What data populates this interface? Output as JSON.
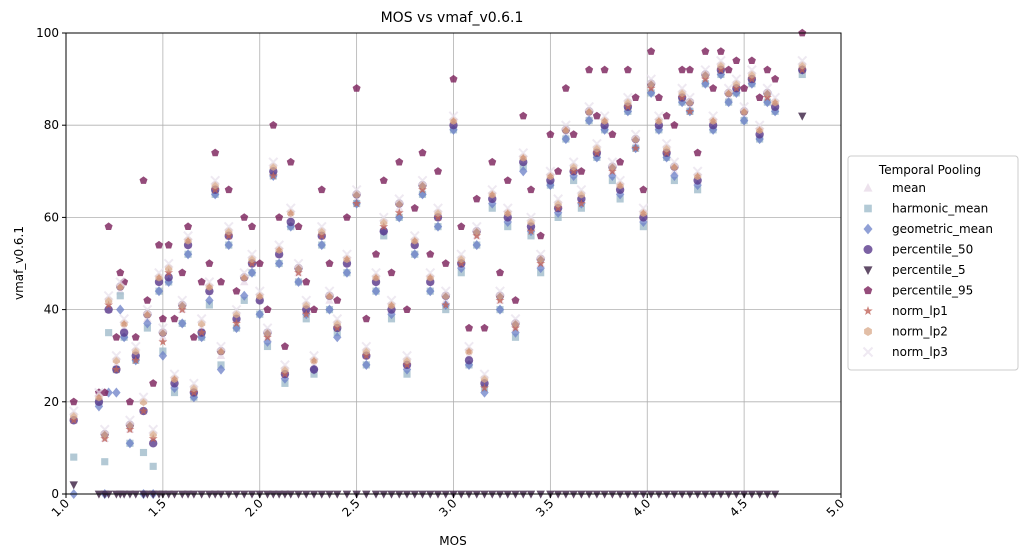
{
  "chart_data": {
    "type": "scatter",
    "title": "MOS vs vmaf_v0.6.1",
    "xlabel": "MOS",
    "ylabel": "vmaf_v0.6.1",
    "xlim": [
      1.0,
      5.0
    ],
    "ylim": [
      0,
      100
    ],
    "xticks": [
      "1.0",
      "1.5",
      "2.0",
      "2.5",
      "3.0",
      "3.5",
      "4.0",
      "4.5",
      "5.0"
    ],
    "yticks": [
      "0",
      "20",
      "40",
      "60",
      "80",
      "100"
    ],
    "grid": true,
    "legend_title": "Temporal Pooling",
    "legend_position": "right",
    "mos": [
      1.04,
      1.17,
      1.2,
      1.22,
      1.26,
      1.28,
      1.3,
      1.33,
      1.36,
      1.4,
      1.42,
      1.45,
      1.48,
      1.5,
      1.53,
      1.56,
      1.6,
      1.63,
      1.66,
      1.7,
      1.74,
      1.77,
      1.8,
      1.84,
      1.88,
      1.92,
      1.96,
      2.0,
      2.04,
      2.07,
      2.1,
      2.13,
      2.16,
      2.2,
      2.24,
      2.28,
      2.32,
      2.36,
      2.4,
      2.45,
      2.5,
      2.55,
      2.6,
      2.64,
      2.68,
      2.72,
      2.76,
      2.8,
      2.84,
      2.88,
      2.92,
      2.96,
      3.0,
      3.04,
      3.08,
      3.12,
      3.16,
      3.2,
      3.24,
      3.28,
      3.32,
      3.36,
      3.4,
      3.45,
      3.5,
      3.54,
      3.58,
      3.62,
      3.66,
      3.7,
      3.74,
      3.78,
      3.82,
      3.86,
      3.9,
      3.94,
      3.98,
      4.02,
      4.06,
      4.1,
      4.14,
      4.18,
      4.22,
      4.26,
      4.3,
      4.34,
      4.38,
      4.42,
      4.46,
      4.5,
      4.54,
      4.58,
      4.62,
      4.66,
      4.8
    ],
    "mean_values": [
      16,
      20,
      12,
      40,
      28,
      44,
      36,
      14,
      30,
      18,
      38,
      12,
      46,
      34,
      48,
      24,
      40,
      54,
      22,
      36,
      44,
      66,
      30,
      56,
      38,
      46,
      50,
      42,
      34,
      70,
      52,
      26,
      60,
      48,
      40,
      28,
      56,
      42,
      36,
      50,
      64,
      30,
      46,
      58,
      40,
      62,
      28,
      54,
      66,
      46,
      60,
      42,
      80,
      50,
      30,
      56,
      24,
      64,
      42,
      60,
      36,
      72,
      58,
      50,
      68,
      62,
      78,
      70,
      64,
      82,
      74,
      80,
      70,
      66,
      84,
      76,
      60,
      88,
      80,
      74,
      70,
      86,
      84,
      68,
      90,
      80,
      92,
      86,
      88,
      82,
      90,
      78,
      86,
      84,
      92
    ],
    "offsets": {
      "harmonic_mean": [
        -8,
        0,
        -5,
        -5,
        -1,
        -1,
        -2,
        -3,
        -1,
        -9,
        -2,
        -6,
        -2,
        -3,
        -2,
        -2,
        -3,
        -2,
        -1,
        -2,
        -3,
        -1,
        -2,
        -2,
        -2,
        -4,
        -2,
        -3,
        -2,
        -1,
        -2,
        -2,
        -2,
        -2,
        -2,
        -2,
        -2,
        -2,
        -1,
        -2,
        -1,
        -2,
        -2,
        -2,
        -2,
        -2,
        -2,
        -2,
        -1,
        -2,
        -2,
        -2,
        -1,
        -2,
        -2,
        -2,
        -1,
        -2,
        -2,
        -2,
        -2,
        -1,
        -2,
        -2,
        -1,
        -2,
        -1,
        -2,
        -2,
        -1,
        -1,
        -1,
        -2,
        -2,
        -1,
        -1,
        -2,
        -1,
        -1,
        -1,
        -2,
        -1,
        -1,
        -2,
        -1,
        -1,
        -1,
        -1,
        -1,
        -1,
        -1,
        -1,
        -1,
        -1,
        -1
      ],
      "geometric_mean": [
        -16,
        -1,
        -12,
        -18,
        -6,
        -4,
        -2,
        -3,
        -1,
        -18,
        -1,
        -12,
        -2,
        -4,
        -2,
        -1,
        -3,
        -2,
        -1,
        -2,
        -2,
        -1,
        -3,
        -2,
        -2,
        -3,
        -2,
        -3,
        -1,
        -1,
        -2,
        -1,
        -2,
        -2,
        -1,
        -1,
        -2,
        -2,
        -2,
        -2,
        -1,
        -2,
        -2,
        -1,
        -1,
        -2,
        -1,
        -2,
        -1,
        -2,
        -2,
        -1,
        -1,
        -1,
        -2,
        -2,
        -2,
        -1,
        -2,
        -1,
        -1,
        -2,
        -1,
        -1,
        -1,
        -1,
        -1,
        -1,
        -1,
        -1,
        -1,
        -1,
        -1,
        -1,
        -1,
        -1,
        -1,
        -1,
        -1,
        -1,
        -1,
        -1,
        -1,
        -1,
        -1,
        -1,
        -1,
        -1,
        -1,
        -1,
        -1,
        -1,
        -1,
        -1,
        0
      ],
      "percentile_50": [
        0,
        0,
        1,
        0,
        -1,
        1,
        -1,
        1,
        0,
        0,
        1,
        -1,
        0,
        1,
        -1,
        0,
        1,
        0,
        0,
        -1,
        0,
        0,
        1,
        0,
        0,
        1,
        0,
        0,
        1,
        0,
        0,
        0,
        -1,
        1,
        0,
        -1,
        0,
        1,
        0,
        0,
        1,
        0,
        0,
        -1,
        0,
        1,
        0,
        0,
        1,
        0,
        0,
        1,
        0,
        0,
        -1,
        1,
        0,
        0,
        1,
        0,
        1,
        0,
        0,
        1,
        0,
        0,
        1,
        0,
        0,
        1,
        0,
        0,
        1,
        0,
        0,
        1,
        0,
        1,
        0,
        0,
        1,
        0,
        1,
        0,
        1,
        0,
        0,
        1,
        0,
        1,
        0,
        0,
        1,
        0,
        0
      ],
      "percentile_5": [
        -14,
        -20,
        -12,
        -40,
        -28,
        -44,
        -36,
        -14,
        -30,
        -18,
        -38,
        -12,
        -46,
        -34,
        -48,
        -24,
        -40,
        -54,
        -22,
        -36,
        -44,
        -66,
        -30,
        -56,
        -38,
        -46,
        -50,
        -42,
        -34,
        -70,
        -52,
        -26,
        -60,
        -48,
        -40,
        -28,
        -56,
        -42,
        -36,
        -50,
        -64,
        -30,
        -46,
        -58,
        -40,
        -62,
        -28,
        -54,
        -66,
        -46,
        -60,
        -42,
        -80,
        -50,
        -30,
        -56,
        -24,
        -64,
        -42,
        -60,
        -36,
        -72,
        -58,
        -50,
        -68,
        -62,
        -78,
        -70,
        -64,
        -82,
        -74,
        -80,
        -70,
        -66,
        -84,
        -76,
        -60,
        -88,
        -80,
        -74,
        -70,
        -86,
        -84,
        -68,
        -90,
        -80,
        -92,
        -86,
        -88,
        -82,
        -90,
        -78,
        -86,
        -84,
        -10
      ],
      "percentile_95": [
        4,
        2,
        10,
        18,
        6,
        4,
        10,
        6,
        4,
        50,
        4,
        12,
        8,
        4,
        6,
        14,
        8,
        4,
        12,
        10,
        6,
        8,
        16,
        10,
        6,
        14,
        8,
        8,
        6,
        10,
        8,
        6,
        12,
        10,
        6,
        12,
        10,
        8,
        6,
        10,
        24,
        8,
        6,
        10,
        8,
        10,
        12,
        8,
        8,
        6,
        10,
        8,
        10,
        8,
        6,
        8,
        12,
        8,
        6,
        8,
        6,
        10,
        8,
        6,
        10,
        8,
        10,
        8,
        6,
        10,
        8,
        12,
        8,
        6,
        8,
        10,
        6,
        8,
        6,
        8,
        10,
        6,
        8,
        6,
        6,
        8,
        4,
        6,
        6,
        6,
        4,
        8,
        6,
        6,
        8
      ],
      "norm_lp1": [
        0,
        1,
        0,
        1,
        -1,
        1,
        1,
        0,
        -1,
        0,
        1,
        0,
        1,
        -1,
        0,
        1,
        0,
        1,
        0,
        -1,
        1,
        0,
        1,
        0,
        -1,
        1,
        0,
        1,
        0,
        -1,
        1,
        0,
        1,
        0,
        -1,
        1,
        0,
        1,
        0,
        1,
        -1,
        0,
        1,
        0,
        1,
        -1,
        0,
        1,
        0,
        1,
        0,
        -1,
        1,
        0,
        1,
        0,
        -1,
        1,
        0,
        1,
        0,
        1,
        -1,
        0,
        1,
        0,
        1,
        0,
        -1,
        1,
        0,
        1,
        0,
        1,
        0,
        -1,
        1,
        0,
        1,
        0,
        1,
        0,
        -1,
        1,
        0,
        1,
        0,
        1,
        0,
        1,
        0,
        1,
        0,
        1,
        0
      ],
      "norm_lp2": [
        1,
        1,
        1,
        2,
        1,
        1,
        1,
        1,
        1,
        2,
        1,
        1,
        1,
        1,
        1,
        1,
        1,
        1,
        1,
        1,
        1,
        1,
        1,
        1,
        1,
        1,
        1,
        1,
        1,
        1,
        1,
        1,
        1,
        1,
        1,
        1,
        1,
        1,
        1,
        1,
        1,
        1,
        1,
        1,
        1,
        1,
        1,
        1,
        1,
        1,
        1,
        1,
        1,
        1,
        1,
        1,
        1,
        1,
        1,
        1,
        1,
        1,
        1,
        1,
        1,
        1,
        1,
        1,
        1,
        1,
        1,
        1,
        1,
        1,
        1,
        1,
        1,
        1,
        1,
        1,
        1,
        1,
        1,
        1,
        1,
        1,
        1,
        1,
        1,
        1,
        1,
        1,
        1,
        1,
        1
      ],
      "norm_lp3": [
        2,
        2,
        2,
        3,
        2,
        2,
        2,
        2,
        2,
        3,
        2,
        2,
        2,
        2,
        2,
        2,
        2,
        2,
        2,
        2,
        2,
        2,
        2,
        2,
        2,
        2,
        2,
        2,
        2,
        2,
        2,
        2,
        2,
        2,
        2,
        2,
        2,
        2,
        2,
        2,
        2,
        2,
        2,
        2,
        2,
        2,
        2,
        2,
        2,
        2,
        2,
        2,
        2,
        2,
        2,
        2,
        2,
        2,
        2,
        2,
        2,
        2,
        2,
        2,
        2,
        2,
        2,
        2,
        2,
        2,
        2,
        2,
        2,
        2,
        2,
        2,
        2,
        2,
        2,
        2,
        2,
        2,
        2,
        2,
        2,
        2,
        2,
        2,
        2,
        2,
        2,
        2,
        2,
        2,
        2
      ]
    },
    "series": [
      {
        "name": "mean",
        "marker": "triangle-up",
        "color": "#e6d6e6"
      },
      {
        "name": "harmonic_mean",
        "marker": "square",
        "color": "#9ab8c8"
      },
      {
        "name": "geometric_mean",
        "marker": "diamond",
        "color": "#6b80c8"
      },
      {
        "name": "percentile_50",
        "marker": "circle",
        "color": "#5a3a8c"
      },
      {
        "name": "percentile_5",
        "marker": "triangle-down",
        "color": "#3a1f42"
      },
      {
        "name": "percentile_95",
        "marker": "pentagon",
        "color": "#7a1f5a"
      },
      {
        "name": "norm_lp1",
        "marker": "star",
        "color": "#c0645a"
      },
      {
        "name": "norm_lp2",
        "marker": "hexagon",
        "color": "#d8a888"
      },
      {
        "name": "norm_lp3",
        "marker": "x",
        "color": "#e8e0ec"
      }
    ]
  }
}
